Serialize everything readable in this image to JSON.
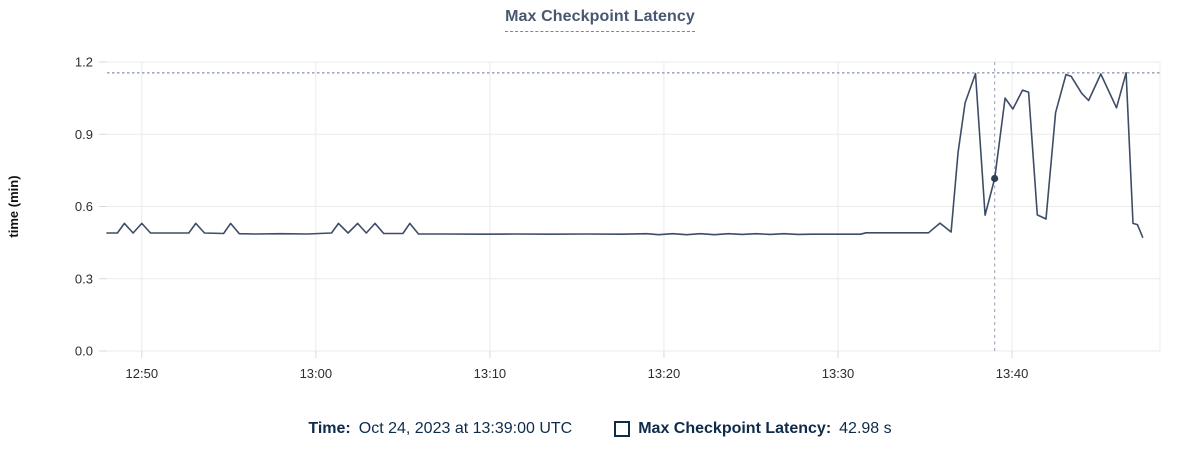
{
  "colors": {
    "line": "#3e4d66",
    "dot": "#2e3e57",
    "max_annotation_line": "#64799c",
    "cursor_line": "#a2adbb",
    "grid": "#ebebeb",
    "tick": "#d9d9d9",
    "tick_label": "#2d2d2d",
    "axis_title": "#111111",
    "title_text": "#485871",
    "legend_text": "#0f2b4a",
    "background": "#ffffff"
  },
  "chart_data": {
    "type": "line",
    "title": "Max Checkpoint Latency",
    "xlabel": "",
    "ylabel": "time (min)",
    "ylim": [
      0,
      1.2
    ],
    "grid": true,
    "legend_position": "bottom",
    "x_domain_minutes": [
      768,
      828.5
    ],
    "y_ticks": [
      {
        "label": "0.0",
        "v": 0.0
      },
      {
        "label": "0.3",
        "v": 0.3
      },
      {
        "label": "0.6",
        "v": 0.6
      },
      {
        "label": "0.9",
        "v": 0.9
      },
      {
        "label": "1.2",
        "v": 1.2
      }
    ],
    "x_ticks": [
      {
        "label": "12:50",
        "t": 770
      },
      {
        "label": "13:00",
        "t": 780
      },
      {
        "label": "13:10",
        "t": 790
      },
      {
        "label": "13:20",
        "t": 800
      },
      {
        "label": "13:30",
        "t": 810
      },
      {
        "label": "13:40",
        "t": 820
      }
    ],
    "series": [
      {
        "name": "Max Checkpoint Latency",
        "unit": "min",
        "points": [
          [
            768.0,
            0.49
          ],
          [
            768.6,
            0.49
          ],
          [
            769.0,
            0.53
          ],
          [
            769.5,
            0.49
          ],
          [
            770.0,
            0.53
          ],
          [
            770.5,
            0.49
          ],
          [
            772.7,
            0.49
          ],
          [
            773.1,
            0.53
          ],
          [
            773.6,
            0.49
          ],
          [
            774.7,
            0.488
          ],
          [
            775.1,
            0.53
          ],
          [
            775.6,
            0.487
          ],
          [
            776.5,
            0.486
          ],
          [
            778.0,
            0.487
          ],
          [
            779.5,
            0.486
          ],
          [
            780.9,
            0.49
          ],
          [
            781.3,
            0.53
          ],
          [
            781.85,
            0.49
          ],
          [
            782.4,
            0.53
          ],
          [
            782.9,
            0.49
          ],
          [
            783.4,
            0.53
          ],
          [
            783.9,
            0.488
          ],
          [
            785.0,
            0.488
          ],
          [
            785.4,
            0.53
          ],
          [
            785.9,
            0.486
          ],
          [
            787.5,
            0.486
          ],
          [
            789.5,
            0.485
          ],
          [
            791.5,
            0.486
          ],
          [
            793.5,
            0.485
          ],
          [
            795.5,
            0.486
          ],
          [
            797.5,
            0.485
          ],
          [
            799.0,
            0.487
          ],
          [
            799.7,
            0.483
          ],
          [
            800.5,
            0.487
          ],
          [
            801.3,
            0.483
          ],
          [
            802.1,
            0.487
          ],
          [
            802.9,
            0.483
          ],
          [
            803.7,
            0.487
          ],
          [
            804.5,
            0.484
          ],
          [
            805.3,
            0.487
          ],
          [
            806.1,
            0.484
          ],
          [
            806.9,
            0.487
          ],
          [
            807.7,
            0.484
          ],
          [
            808.5,
            0.485
          ],
          [
            810.0,
            0.485
          ],
          [
            811.3,
            0.485
          ],
          [
            811.6,
            0.491
          ],
          [
            813.0,
            0.491
          ],
          [
            814.5,
            0.491
          ],
          [
            815.2,
            0.491
          ],
          [
            815.86,
            0.531
          ],
          [
            816.5,
            0.494
          ],
          [
            816.9,
            0.826
          ],
          [
            817.3,
            1.03
          ],
          [
            817.9,
            1.152
          ],
          [
            818.45,
            0.564
          ],
          [
            819.0,
            0.7163
          ],
          [
            819.6,
            1.05
          ],
          [
            820.05,
            1.005
          ],
          [
            820.6,
            1.083
          ],
          [
            820.95,
            1.075
          ],
          [
            821.45,
            0.565
          ],
          [
            821.95,
            0.548
          ],
          [
            822.5,
            0.99
          ],
          [
            823.1,
            1.148
          ],
          [
            823.4,
            1.14
          ],
          [
            824.0,
            1.07
          ],
          [
            824.4,
            1.04
          ],
          [
            825.1,
            1.15
          ],
          [
            826.0,
            1.01
          ],
          [
            826.55,
            1.155
          ],
          [
            826.95,
            0.53
          ],
          [
            827.2,
            0.525
          ],
          [
            827.5,
            0.473
          ]
        ]
      }
    ],
    "annotations": {
      "max_line_value": 1.155,
      "cursor_time_minutes": 819,
      "cursor_point": {
        "t": 819,
        "v": 0.7163
      }
    }
  },
  "tooltip": {
    "time_label": "Time:",
    "time_value": "Oct 24, 2023 at 13:39:00 UTC",
    "series_label": "Max Checkpoint Latency:",
    "series_value": "42.98 s",
    "swatch_style": "square-outline"
  }
}
